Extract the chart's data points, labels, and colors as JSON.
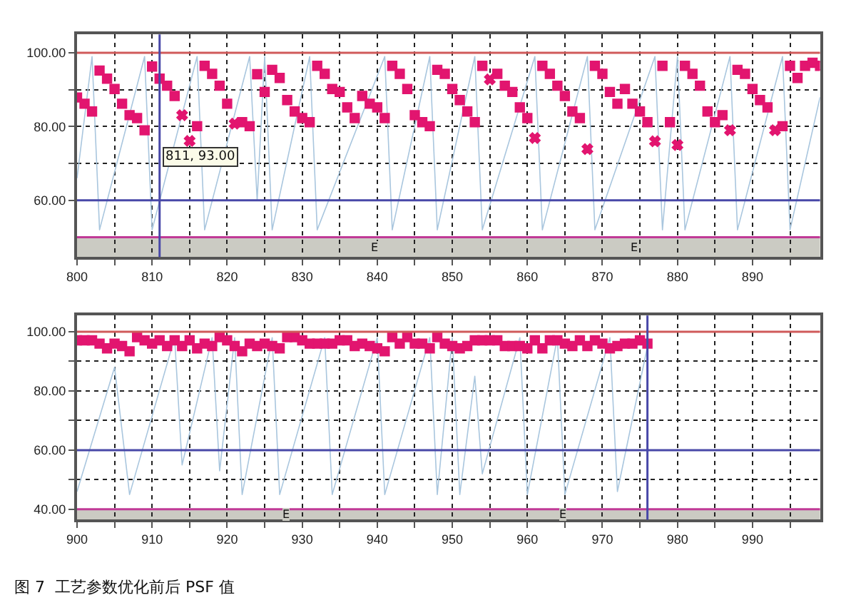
{
  "chart_data": [
    {
      "type": "scatter",
      "xlim": [
        800,
        899
      ],
      "ylim": [
        44.6,
        105
      ],
      "xticks": [
        800,
        {
          "value": 805,
          "label": null
        },
        810,
        {
          "value": 815,
          "label": null
        },
        820,
        {
          "value": 825,
          "label": null
        },
        830,
        {
          "value": 835,
          "label": null
        },
        840,
        {
          "value": 845,
          "label": null
        },
        850,
        {
          "value": 855,
          "label": null
        },
        860,
        {
          "value": 865,
          "label": null
        },
        870,
        {
          "value": 875,
          "label": null
        },
        880,
        {
          "value": 885,
          "label": null
        },
        890,
        {
          "value": 895,
          "label": null
        }
      ],
      "yticks": [
        {
          "value": 100,
          "label": "100.00"
        },
        {
          "value": 90,
          "label": null
        },
        {
          "value": 80,
          "label": "80.00"
        },
        {
          "value": 70,
          "label": null
        },
        {
          "value": 60,
          "label": "60.00"
        }
      ],
      "grid": true,
      "series": [
        {
          "type": "line",
          "color": "#a9c6de",
          "marker": "none",
          "x": [
            800,
            802,
            803,
            809,
            810,
            816,
            817,
            823,
            824,
            825,
            826,
            831,
            832,
            841,
            842,
            847,
            848,
            853,
            854,
            861,
            862,
            868,
            869,
            877,
            878,
            880,
            881,
            887,
            888,
            894,
            895,
            899
          ],
          "values": [
            66,
            99,
            52,
            99,
            52,
            99,
            52,
            99,
            60,
            99,
            52,
            99,
            52,
            99,
            52,
            99,
            52,
            99,
            52,
            99,
            52,
            99,
            52,
            99,
            52,
            99,
            52,
            99,
            52,
            99,
            52,
            88
          ]
        },
        {
          "color": "#e2156f",
          "marker": "square",
          "x": [
            800,
            801,
            802,
            803,
            804,
            805,
            806,
            807,
            808,
            809,
            810,
            811,
            812,
            813,
            816,
            817,
            818,
            819,
            820,
            822,
            823,
            824,
            825,
            826,
            827,
            828,
            829,
            830,
            831,
            832,
            833,
            834,
            835,
            836,
            837,
            838,
            839,
            840,
            841,
            842,
            843,
            844,
            845,
            846,
            847,
            848,
            849,
            850,
            851,
            852,
            853,
            854,
            856,
            857,
            858,
            859,
            860,
            862,
            863,
            864,
            865,
            866,
            867,
            869,
            870,
            871,
            872,
            873,
            874,
            875,
            876,
            878,
            879,
            881,
            882,
            883,
            884,
            885,
            886,
            888,
            889,
            890,
            891,
            892,
            894,
            895,
            896,
            897,
            898,
            899
          ],
          "values": [
            87.9,
            86.2,
            84.1,
            95.2,
            93.0,
            90.2,
            86.2,
            83.1,
            82.3,
            79.0,
            96.3,
            93.0,
            91.1,
            88.3,
            80.1,
            96.5,
            94.3,
            91.1,
            86.2,
            81.2,
            80.1,
            94.2,
            89.4,
            95.4,
            93.2,
            87.2,
            84.1,
            82.3,
            81.2,
            96.5,
            94.3,
            90.2,
            89.4,
            85.2,
            82.3,
            88.3,
            86.2,
            85.2,
            82.3,
            96.5,
            94.3,
            90.2,
            83.1,
            81.2,
            80.1,
            95.4,
            94.3,
            90.2,
            87.2,
            84.1,
            81.2,
            96.5,
            94.3,
            91.1,
            89.4,
            85.2,
            82.3,
            96.5,
            94.3,
            91.1,
            88.3,
            84.1,
            82.3,
            96.5,
            94.3,
            89.4,
            86.2,
            90.2,
            86.2,
            84.1,
            81.2,
            96.5,
            81.2,
            96.5,
            94.3,
            91.1,
            84.1,
            81.2,
            83.1,
            95.4,
            94.3,
            90.2,
            87.2,
            85.2,
            80.1,
            96.5,
            93.2,
            96.5,
            97.3,
            96.5
          ]
        },
        {
          "color": "#e2156f",
          "marker": "cross",
          "x": [
            814,
            815,
            821,
            855,
            861,
            868,
            877,
            880,
            887,
            893
          ],
          "values": [
            83.1,
            76.1,
            80.8,
            92.8,
            76.9,
            73.9,
            76.0,
            75.0,
            79.0,
            79.0
          ]
        }
      ],
      "ref_lines": [
        {
          "axis": "y",
          "value": 100,
          "color": "#d05a5a"
        },
        {
          "axis": "y",
          "value": 60,
          "color": "#4848a8"
        },
        {
          "axis": "y",
          "value": 50,
          "color": "#c03a96"
        },
        {
          "axis": "x",
          "value": 811,
          "color": "#4848a8"
        }
      ],
      "bands": [
        {
          "axis": "y",
          "from": 44.6,
          "to": 50,
          "color": "#cbcbc3"
        }
      ],
      "annotations": [
        "811, 93.00",
        "E",
        "E"
      ]
    },
    {
      "type": "scatter",
      "xlim": [
        900,
        999
      ],
      "ylim": [
        36.5,
        105.5
      ],
      "xticks": [
        900,
        {
          "value": 905,
          "label": null
        },
        910,
        {
          "value": 915,
          "label": null
        },
        920,
        {
          "value": 925,
          "label": null
        },
        930,
        {
          "value": 935,
          "label": null
        },
        940,
        {
          "value": 945,
          "label": null
        },
        950,
        {
          "value": 955,
          "label": null
        },
        960,
        {
          "value": 965,
          "label": null
        },
        970,
        {
          "value": 975,
          "label": null
        },
        980,
        {
          "value": 985,
          "label": null
        },
        990,
        {
          "value": 995,
          "label": null
        }
      ],
      "yticks": [
        {
          "value": 100,
          "label": "100.00"
        },
        {
          "value": 90,
          "label": null
        },
        {
          "value": 80,
          "label": "80.00"
        },
        {
          "value": 70,
          "label": null
        },
        {
          "value": 60,
          "label": "60.00"
        },
        {
          "value": 50,
          "label": null
        },
        {
          "value": 40,
          "label": "40.00"
        }
      ],
      "grid": true,
      "series": [
        {
          "type": "line",
          "color": "#a9c6de",
          "marker": "none",
          "x": [
            900,
            905,
            907,
            913,
            914,
            918,
            919,
            921,
            922,
            926,
            927,
            933,
            934,
            940,
            941,
            947,
            948,
            950,
            951,
            953,
            954,
            959,
            960,
            964,
            965,
            971,
            972,
            976
          ],
          "values": [
            46,
            88,
            45,
            98,
            55,
            98,
            53,
            98,
            45,
            98,
            45,
            98,
            45,
            98,
            45,
            98,
            45,
            98,
            45,
            85,
            52,
            98,
            45,
            98,
            45,
            98,
            46,
            95
          ]
        },
        {
          "color": "#e2156f",
          "marker": "square",
          "x": [
            900,
            901,
            902,
            903,
            904,
            905,
            906,
            907,
            908,
            909,
            910,
            911,
            912,
            913,
            914,
            915,
            916,
            917,
            918,
            919,
            920,
            921,
            922,
            923,
            924,
            925,
            926,
            927,
            928,
            929,
            930,
            931,
            932,
            933,
            934,
            935,
            936,
            937,
            938,
            939,
            940,
            941,
            942,
            943,
            944,
            945,
            946,
            947,
            948,
            949,
            950,
            951,
            952,
            953,
            954,
            955,
            956,
            957,
            958,
            959,
            960,
            961,
            962,
            963,
            964,
            965,
            966,
            967,
            968,
            969,
            970,
            971,
            972,
            973,
            974,
            975,
            976
          ],
          "values": [
            97.1,
            97.1,
            97.1,
            96.0,
            94.4,
            96.0,
            95.2,
            93.4,
            98.2,
            97.1,
            96.0,
            97.1,
            95.2,
            97.1,
            95.2,
            97.1,
            94.4,
            96.0,
            95.2,
            98.2,
            97.1,
            95.2,
            93.4,
            96.0,
            95.2,
            96.0,
            95.2,
            94.4,
            98.2,
            98.2,
            97.1,
            96.0,
            96.0,
            96.0,
            96.0,
            97.1,
            97.1,
            95.2,
            96.0,
            95.2,
            94.4,
            93.4,
            98.2,
            96.0,
            98.2,
            96.0,
            96.0,
            94.4,
            98.2,
            96.0,
            95.2,
            94.4,
            95.2,
            97.1,
            97.1,
            97.1,
            97.1,
            95.2,
            95.2,
            95.2,
            94.4,
            97.1,
            94.4,
            97.1,
            97.1,
            96.0,
            95.2,
            97.1,
            95.2,
            97.1,
            96.0,
            94.4,
            95.2,
            96.0,
            96.0,
            97.1,
            96.0
          ]
        }
      ],
      "ref_lines": [
        {
          "axis": "y",
          "value": 100,
          "color": "#d05a5a"
        },
        {
          "axis": "y",
          "value": 60,
          "color": "#4848a8"
        },
        {
          "axis": "y",
          "value": 40,
          "color": "#c03a96"
        },
        {
          "axis": "x",
          "value": 976,
          "color": "#4848a8"
        }
      ],
      "bands": [
        {
          "axis": "y",
          "from": 36.5,
          "to": 40,
          "color": "#cbcbc3"
        }
      ],
      "annotations": [
        "E",
        "E",
        "图 7  工艺参数优化前后 PSF 值"
      ]
    }
  ]
}
